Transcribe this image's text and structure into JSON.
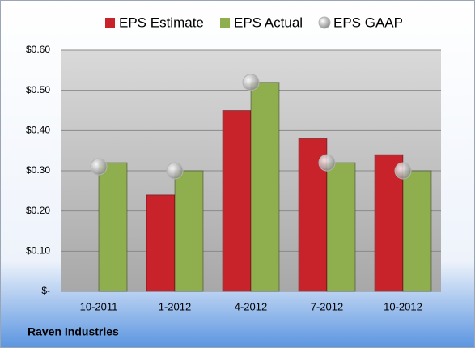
{
  "chart_data": {
    "type": "bar",
    "categories": [
      "10-2011",
      "1-2012",
      "4-2012",
      "7-2012",
      "10-2012"
    ],
    "series": [
      {
        "name": "EPS Estimate",
        "color": "#c8232b",
        "values": [
          null,
          0.24,
          0.45,
          0.38,
          0.34
        ]
      },
      {
        "name": "EPS Actual",
        "color": "#8fae4e",
        "values": [
          0.32,
          0.3,
          0.52,
          0.32,
          0.3
        ]
      },
      {
        "name": "EPS GAAP",
        "color": "#b4b4b4",
        "type": "scatter",
        "values": [
          0.31,
          0.3,
          0.52,
          0.32,
          0.3
        ]
      }
    ],
    "ylim": [
      0,
      0.6
    ],
    "yticks": [
      {
        "value": 0,
        "label": "$-"
      },
      {
        "value": 0.1,
        "label": "$0.10"
      },
      {
        "value": 0.2,
        "label": "$0.20"
      },
      {
        "value": 0.3,
        "label": "$0.30"
      },
      {
        "value": 0.4,
        "label": "$0.40"
      },
      {
        "value": 0.5,
        "label": "$0.50"
      },
      {
        "value": 0.6,
        "label": "$0.60"
      }
    ],
    "grid": true,
    "legend": "top",
    "source": "Raven Industries"
  }
}
